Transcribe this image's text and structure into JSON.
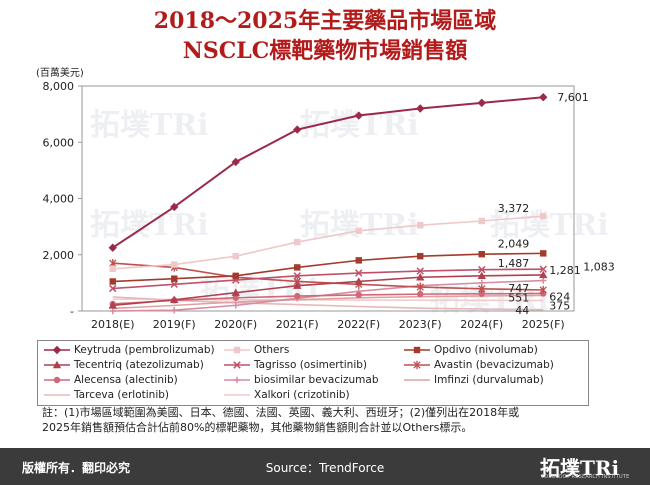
{
  "title_line1": "2018～2025年主要藥品市場區域",
  "title_line2": "NSCLC標靶藥物市場銷售額",
  "unit": "(百萬美元)",
  "watermark": "拓墣TRi",
  "watermark_sub": "TOPOLOGY RESEARCH INSTITUTE",
  "note_line1": "註：(1)市場區域範圍為美國、日本、德國、法國、英國、義大利、西班牙；(2)僅列出在2018年或",
  "note_line2": "2025年銷售額預估合計佔前80%的標靶藥物，其他藥物銷售額則合計並以Others標示。",
  "footer": {
    "copyright": "版權所有．翻印必究",
    "source": "Source：TrendForce",
    "logo": "拓墣TRi",
    "logo_sub": "TOPOLOGY RESEARCH INSTITUTE"
  },
  "chart_data": {
    "type": "line",
    "categories": [
      "2018(E)",
      "2019(F)",
      "2020(F)",
      "2021(F)",
      "2022(F)",
      "2023(F)",
      "2024(F)",
      "2025(F)"
    ],
    "ylim": [
      0,
      8000
    ],
    "yticks": [
      "-",
      "2,000",
      "4,000",
      "6,000",
      "8,000"
    ],
    "ylabel": "(百萬美元)",
    "grid": false,
    "series": [
      {
        "name": "Keytruda (pembrolizumab)",
        "color": "#9b2a4a",
        "marker": "diamond",
        "values": [
          2250,
          3700,
          5300,
          6450,
          6950,
          7200,
          7400,
          7601
        ],
        "end_label": "7,601"
      },
      {
        "name": "Others",
        "color": "#f0c8c8",
        "marker": "square",
        "values": [
          1500,
          1650,
          1950,
          2450,
          2850,
          3050,
          3200,
          3372
        ],
        "end_label": "3,372"
      },
      {
        "name": "Opdivo (nivolumab)",
        "color": "#a33b2c",
        "marker": "square",
        "values": [
          1050,
          1150,
          1250,
          1550,
          1800,
          1950,
          2020,
          2049
        ],
        "end_label": "2,049"
      },
      {
        "name": "Tecentriq (atezolizumab)",
        "color": "#b04050",
        "marker": "triangle",
        "values": [
          200,
          400,
          650,
          900,
          1050,
          1200,
          1250,
          1281
        ],
        "end_label": "1,281"
      },
      {
        "name": "Tagrisso (osimertinib)",
        "color": "#c0506a",
        "marker": "x",
        "values": [
          800,
          950,
          1100,
          1250,
          1350,
          1420,
          1470,
          1487
        ],
        "end_label": "1,487"
      },
      {
        "name": "Avastin (bevacizumab)",
        "color": "#c05050",
        "marker": "star",
        "values": [
          1700,
          1550,
          1200,
          1050,
          950,
          850,
          790,
          747
        ],
        "end_label": "747"
      },
      {
        "name": "Alecensa (alectinib)",
        "color": "#d06878",
        "marker": "circle",
        "values": [
          250,
          380,
          470,
          530,
          570,
          600,
          610,
          624
        ],
        "end_label": "624"
      },
      {
        "name": "biosimilar bevacizumab",
        "color": "#d88ca0",
        "marker": "plus",
        "values": [
          0,
          30,
          200,
          450,
          700,
          900,
          1000,
          1083
        ],
        "end_label": "1,083"
      },
      {
        "name": "Imfinzi (durvalumab)",
        "color": "#e0a0a0",
        "marker": "none",
        "values": [
          90,
          200,
          320,
          400,
          470,
          510,
          535,
          551
        ],
        "end_label": "551"
      },
      {
        "name": "Tarceva (erlotinib)",
        "color": "#e8b8b8",
        "marker": "none",
        "values": [
          500,
          380,
          290,
          230,
          160,
          100,
          70,
          44
        ],
        "end_label": "44"
      },
      {
        "name": "Xalkori (crizotinib)",
        "color": "#f0cccc",
        "marker": "none",
        "values": [
          420,
          410,
          400,
          395,
          390,
          385,
          380,
          375
        ],
        "end_label": "375"
      }
    ]
  }
}
